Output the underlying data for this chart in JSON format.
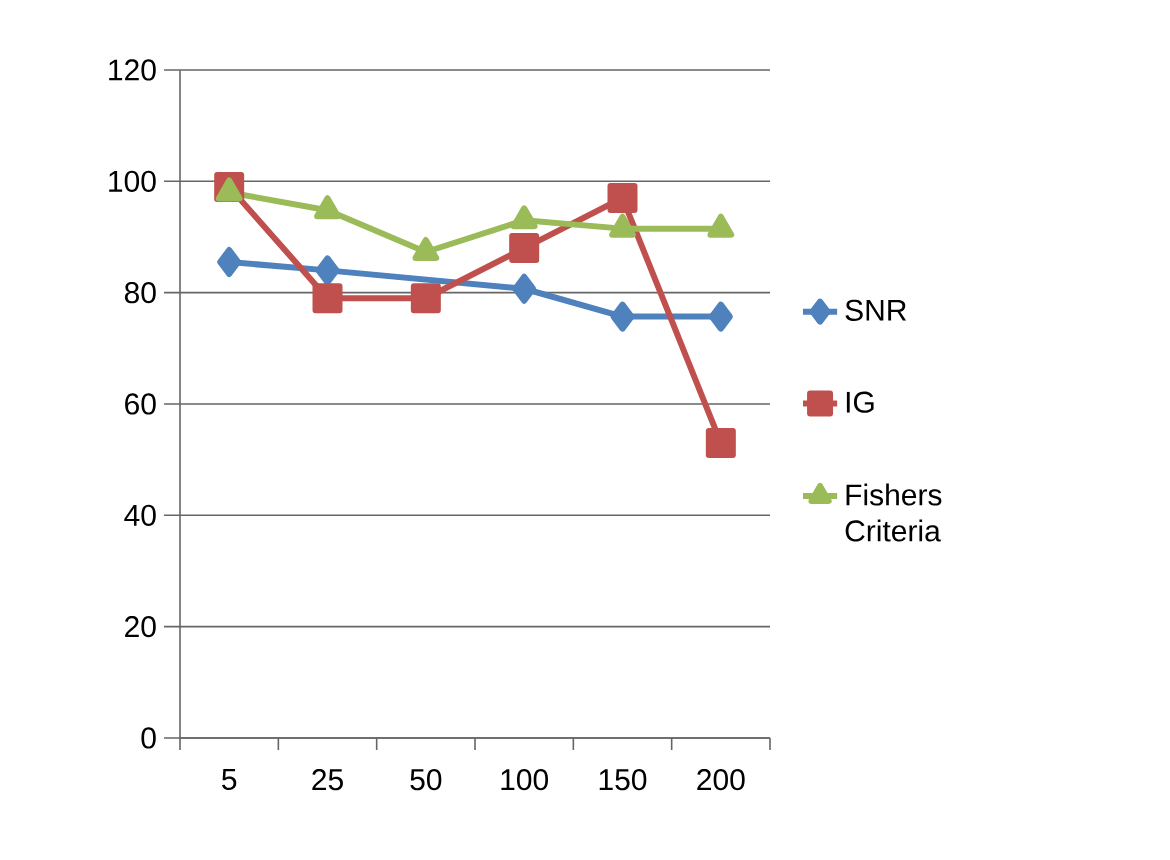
{
  "chart_data": {
    "type": "line",
    "categories": [
      "5",
      "25",
      "50",
      "100",
      "150",
      "200"
    ],
    "series": [
      {
        "name": "SNR",
        "color": "#4f81bd",
        "marker": "diamond",
        "values": [
          85.5,
          84,
          null,
          80.7,
          75.7,
          75.7
        ]
      },
      {
        "name": "IG",
        "color": "#c0504d",
        "marker": "square",
        "values": [
          99,
          79,
          79,
          88,
          97,
          53
        ]
      },
      {
        "name": "Fishers Criteria",
        "color": "#9bbb59",
        "marker": "triangle",
        "values": [
          98,
          94.8,
          87.3,
          93,
          91.5,
          91.5
        ]
      }
    ],
    "ylim": [
      0,
      120
    ],
    "yticks": [
      0,
      20,
      40,
      60,
      80,
      100,
      120
    ],
    "grid": "y",
    "legend": "right",
    "line_style": "solid"
  }
}
